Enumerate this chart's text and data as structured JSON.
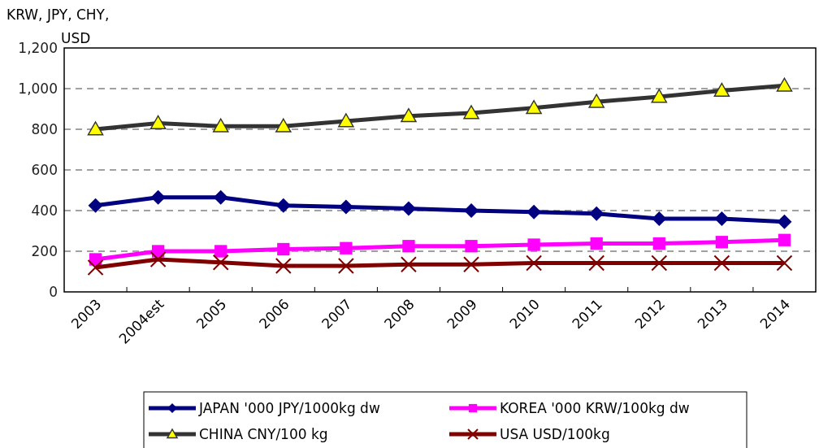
{
  "chart_data": {
    "type": "line",
    "ylabel": "KRW, JPY, CHY, USD",
    "categories": [
      "2003",
      "2004est",
      "2005",
      "2006",
      "2007",
      "2008",
      "2009",
      "2010",
      "2011",
      "2012",
      "2013",
      "2014"
    ],
    "series": [
      {
        "name": "JAPAN '000 JPY/1000kg dw",
        "color": "#000080",
        "marker": "diamond",
        "values": [
          425,
          465,
          465,
          425,
          418,
          410,
          400,
          393,
          385,
          360,
          360,
          345
        ]
      },
      {
        "name": "KOREA '000 KRW/100kg dw",
        "color": "#ff00ff",
        "marker": "square",
        "values": [
          160,
          200,
          200,
          210,
          215,
          225,
          225,
          232,
          238,
          238,
          245,
          255
        ]
      },
      {
        "name": "CHINA CNY/100 kg",
        "color": "#333333",
        "marker": "triangle",
        "values": [
          800,
          830,
          815,
          815,
          840,
          865,
          880,
          905,
          935,
          960,
          990,
          1015
        ]
      },
      {
        "name": "USA USD/100kg",
        "color": "#800000",
        "marker": "cross",
        "values": [
          120,
          160,
          145,
          128,
          128,
          135,
          135,
          142,
          142,
          142,
          142,
          142
        ]
      }
    ],
    "ylim": [
      0,
      1200
    ],
    "yticks": [
      {
        "value": 0,
        "label": "0"
      },
      {
        "value": 200,
        "label": "200"
      },
      {
        "value": 400,
        "label": "400"
      },
      {
        "value": 600,
        "label": "600"
      },
      {
        "value": 800,
        "label": "800"
      },
      {
        "value": 1000,
        "label": "1,000"
      },
      {
        "value": 1200,
        "label": "1,200"
      }
    ],
    "grid": "y",
    "legend": "bottom",
    "line_style": "solid"
  }
}
